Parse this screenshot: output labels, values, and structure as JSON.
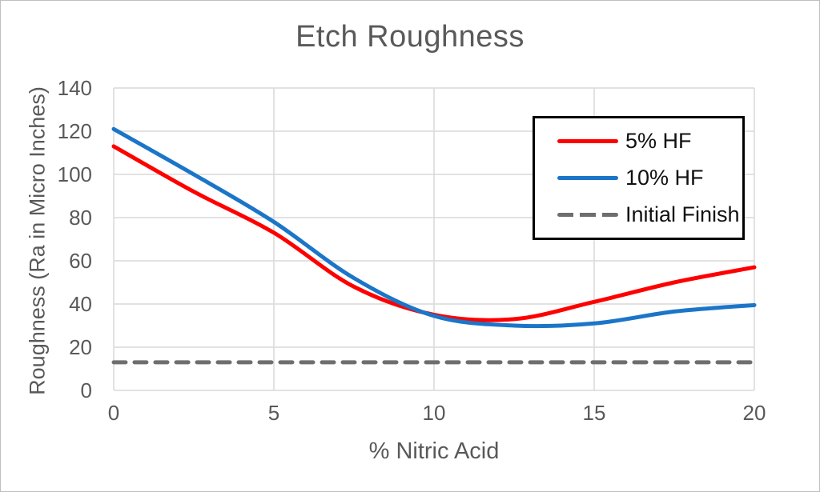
{
  "chart_data": {
    "type": "line",
    "title": "Etch Roughness",
    "xlabel": "% Nitric Acid",
    "ylabel": "Roughness (Ra in Micro Inches)",
    "xlim": [
      0,
      20
    ],
    "ylim": [
      0,
      140
    ],
    "x_ticks": [
      0,
      5,
      10,
      15,
      20
    ],
    "y_ticks": [
      0,
      20,
      40,
      60,
      80,
      100,
      120,
      140
    ],
    "grid": true,
    "legend_position": "top-right",
    "x": [
      0,
      2.5,
      5,
      7.5,
      10,
      12.5,
      15,
      17.5,
      20
    ],
    "series": [
      {
        "name": "5% HF",
        "color": "#ff0000",
        "style": "solid",
        "values": [
          113,
          92,
          73,
          48,
          35,
          33,
          41,
          50,
          57
        ]
      },
      {
        "name": "10% HF",
        "color": "#1b75c8",
        "style": "solid",
        "values": [
          121,
          100,
          78,
          52,
          34.5,
          30,
          31,
          36.5,
          39.5
        ]
      },
      {
        "name": "Initial Finish",
        "color": "#6e6e6e",
        "style": "dashed",
        "values": [
          13,
          13,
          13,
          13,
          13,
          13,
          13,
          13,
          13
        ]
      }
    ],
    "colors": {
      "gridline": "#d9d9d9",
      "axis_text": "#595959",
      "legend_text": "#111111",
      "legend_border": "#000000",
      "background": "#ffffff"
    }
  }
}
